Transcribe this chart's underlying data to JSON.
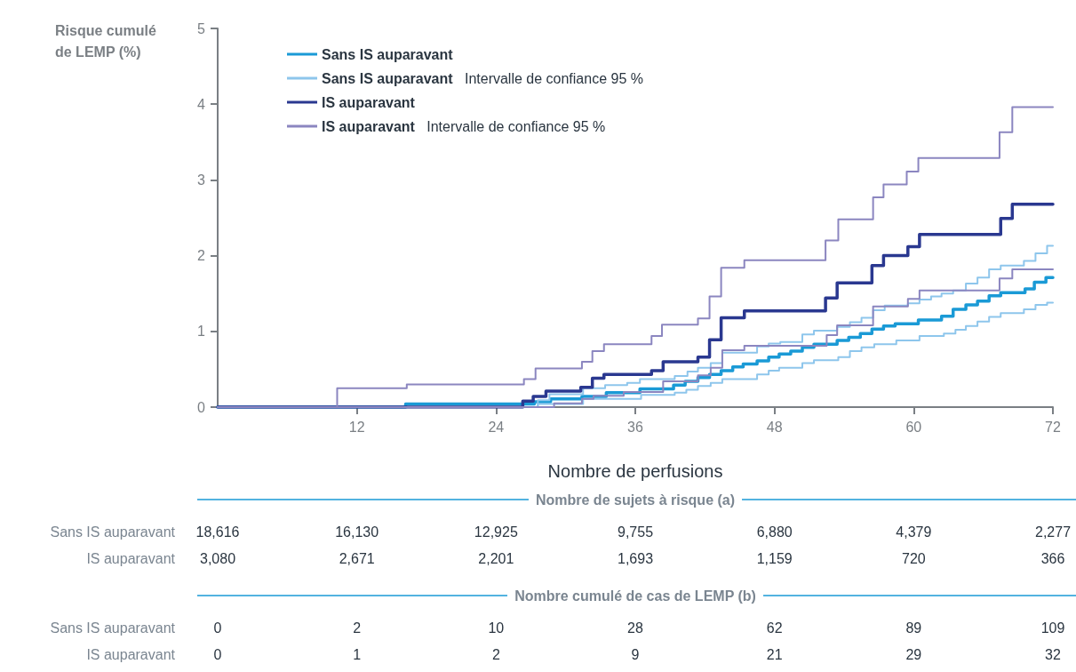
{
  "chart_data": {
    "type": "step",
    "xlabel": "Nombre de perfusions",
    "ylabel": "Risque cumulé de LEMP (%)",
    "xlim": [
      0,
      72
    ],
    "xticks": [
      12,
      24,
      36,
      48,
      60,
      72
    ],
    "ylim": [
      0,
      5
    ],
    "yticks": [
      0,
      1,
      2,
      3,
      4,
      5
    ],
    "legend": "top left",
    "marker": "none",
    "line_style": "solid",
    "series": [
      {
        "name": "Sans IS auparavant",
        "color": "#1a9ad6",
        "x": [
          0,
          16.2,
          27.3,
          28.7,
          31.4,
          33.5,
          36.4,
          39.3,
          40.3,
          41.4,
          42.4,
          43.4,
          44.4,
          45.3,
          46.5,
          47.5,
          48.4,
          49.4,
          50.4,
          51.4,
          53.4,
          54.4,
          55.4,
          56.4,
          57.4,
          58.4,
          60.4,
          62.4,
          63.4,
          64.5,
          65.5,
          66.5,
          67.5,
          69.6,
          70.4,
          71.4,
          72
        ],
        "values": [
          0,
          0.04,
          0.07,
          0.11,
          0.14,
          0.19,
          0.24,
          0.29,
          0.34,
          0.39,
          0.43,
          0.48,
          0.53,
          0.57,
          0.61,
          0.66,
          0.7,
          0.74,
          0.79,
          0.83,
          0.88,
          0.92,
          0.97,
          1.03,
          1.07,
          1.1,
          1.15,
          1.2,
          1.29,
          1.35,
          1.4,
          1.47,
          1.51,
          1.56,
          1.65,
          1.71,
          1.71
        ]
      },
      {
        "name": "Sans IS auparavant   Intervalle de confiance 95 %",
        "color": "#8ec6ec",
        "x": [
          0,
          27.6,
          28.6,
          31.5,
          33.4,
          35.3,
          36.4,
          39.4,
          40.5,
          41.4,
          42.5,
          43.5,
          46.5,
          47.5,
          48.5,
          50.4,
          51.4,
          53.4,
          54.5,
          55.5,
          56.5,
          57.5,
          59.5,
          60.5,
          61.5,
          62.4,
          63.4,
          64.5,
          65.5,
          66.5,
          67.5,
          69.5,
          70.5,
          71.5,
          72
        ],
        "values": [
          0,
          0.09,
          0.17,
          0.25,
          0.29,
          0.32,
          0.37,
          0.41,
          0.47,
          0.52,
          0.58,
          0.72,
          0.8,
          0.84,
          0.86,
          0.96,
          1.01,
          1.06,
          1.12,
          1.18,
          1.28,
          1.34,
          1.37,
          1.42,
          1.46,
          1.5,
          1.54,
          1.63,
          1.71,
          1.82,
          1.87,
          1.93,
          2.03,
          2.13,
          2.13
        ]
      },
      {
        "color": "#8ec6ec",
        "x": [
          0,
          27.6,
          31.5,
          36.5,
          39.4,
          40.4,
          41.4,
          42.5,
          43.5,
          46.5,
          47.5,
          48.4,
          50.4,
          51.4,
          53.5,
          54.5,
          55.5,
          56.6,
          58.5,
          60.5,
          62.6,
          63.6,
          64.5,
          65.5,
          66.5,
          67.5,
          69.5,
          70.5,
          71.5,
          72
        ],
        "values": [
          0,
          0.04,
          0.11,
          0.16,
          0.19,
          0.23,
          0.28,
          0.32,
          0.37,
          0.43,
          0.48,
          0.52,
          0.58,
          0.62,
          0.66,
          0.74,
          0.79,
          0.83,
          0.88,
          0.94,
          0.97,
          1.02,
          1.07,
          1.13,
          1.19,
          1.24,
          1.29,
          1.35,
          1.38,
          1.38
        ]
      },
      {
        "name": "IS auparavant",
        "color": "#2a3890",
        "x": [
          0,
          26.3,
          27.2,
          28.3,
          31.3,
          32.3,
          33.3,
          37.4,
          38.4,
          41.4,
          42.4,
          43.4,
          45.4,
          52.4,
          53.4,
          56.4,
          57.4,
          59.5,
          60.5,
          67.5,
          68.5,
          72
        ],
        "values": [
          0,
          0.08,
          0.14,
          0.21,
          0.26,
          0.38,
          0.43,
          0.48,
          0.6,
          0.66,
          0.89,
          1.18,
          1.27,
          1.44,
          1.64,
          1.87,
          2.0,
          2.12,
          2.28,
          2.49,
          2.68,
          2.68
        ]
      },
      {
        "name": "IS auparavant   Intervalle de confiance 95 %",
        "color": "#8b86c0",
        "x": [
          0,
          10.3,
          16.3,
          26.4,
          27.4,
          31.4,
          32.3,
          33.3,
          37.4,
          38.3,
          41.4,
          42.4,
          43.4,
          45.4,
          52.4,
          53.5,
          56.5,
          57.4,
          59.4,
          60.4,
          67.4,
          68.5,
          72
        ],
        "values": [
          0,
          0.25,
          0.3,
          0.37,
          0.51,
          0.6,
          0.74,
          0.83,
          0.94,
          1.09,
          1.17,
          1.46,
          1.84,
          1.94,
          2.2,
          2.48,
          2.77,
          2.94,
          3.11,
          3.29,
          3.63,
          3.96,
          3.96
        ]
      },
      {
        "color": "#8b86c0",
        "x": [
          0,
          29.0,
          31.4,
          32.4,
          35.0,
          38.4,
          41.4,
          42.5,
          43.5,
          45.4,
          52.5,
          53.4,
          56.5,
          59.5,
          60.5,
          67.4,
          68.5,
          72
        ],
        "values": [
          0,
          0.05,
          0.11,
          0.15,
          0.2,
          0.34,
          0.42,
          0.52,
          0.75,
          0.81,
          0.95,
          1.08,
          1.33,
          1.43,
          1.54,
          1.7,
          1.82,
          1.82
        ]
      }
    ],
    "annotations": [
      "Nombre de sujets à risque (a)",
      {
        "text": "Sans IS auparavant"
      },
      {
        "text": "18,616"
      },
      {
        "text": "16,130"
      },
      {
        "text": "12,925"
      },
      {
        "text": "9,755"
      },
      {
        "text": "6,880"
      },
      {
        "text": "4,379"
      },
      {
        "text": "2,277"
      },
      {
        "text": "IS auparavant"
      },
      {
        "text": "3,080"
      },
      {
        "text": "2,671"
      },
      {
        "text": "2,201"
      },
      {
        "text": "1,693"
      },
      {
        "text": "1,159"
      },
      {
        "text": "720"
      },
      {
        "text": "366"
      },
      "Nombre cumulé de cas de LEMP (b)",
      {
        "text": "Sans IS auparavant"
      },
      {
        "text": "0"
      },
      {
        "text": "2"
      },
      {
        "text": "10"
      },
      {
        "text": "28"
      },
      {
        "text": "62"
      },
      {
        "text": "89"
      },
      {
        "text": "109"
      },
      {
        "text": "IS auparavant"
      },
      {
        "text": "0"
      },
      {
        "text": "1"
      },
      {
        "text": "2"
      },
      {
        "text": "9"
      },
      {
        "text": "21"
      },
      {
        "text": "29"
      },
      {
        "text": "32"
      }
    ]
  }
}
